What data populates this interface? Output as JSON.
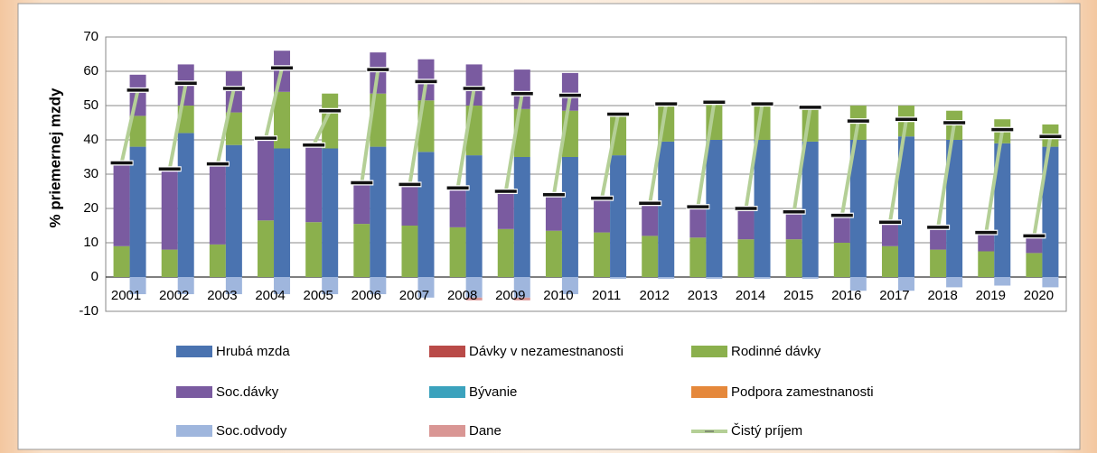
{
  "chart_data": {
    "type": "bar",
    "stacked": true,
    "legend": "bottom",
    "grid": true,
    "ylabel": "% priemernej mzdy",
    "categories": [
      "2001",
      null,
      "2002",
      null,
      "2003",
      null,
      "2004",
      null,
      "2005",
      null,
      "2006",
      null,
      "2007",
      null,
      "2008",
      null,
      "2009",
      null,
      "2010",
      null,
      "2011",
      null,
      "2012",
      null,
      "2013",
      null,
      "2014",
      null,
      "2015",
      null,
      "2016",
      null,
      "2017",
      null,
      "2018",
      null,
      "2019",
      null,
      "2020",
      null
    ],
    "ylim": [
      -10,
      70
    ],
    "yticks": [
      -10,
      0,
      10,
      20,
      30,
      40,
      50,
      60,
      70
    ],
    "series": [
      {
        "name": "Hrubá mzda",
        "color": "#4a73b0",
        "values": [
          0,
          38,
          0,
          42,
          0,
          38.5,
          0,
          37.5,
          0,
          37.5,
          0,
          38,
          0,
          36.5,
          0,
          35.5,
          0,
          35,
          0,
          35,
          0,
          35.5,
          0,
          39.5,
          0,
          40,
          0,
          40,
          0,
          39.5,
          0,
          40,
          0,
          41,
          0,
          40,
          0,
          39,
          0,
          38
        ]
      },
      {
        "name": "Dávky v nezamestnanosti",
        "color": "#b94a48",
        "values": [
          0,
          0,
          0,
          0,
          0,
          0,
          0,
          0,
          0,
          0,
          0,
          0,
          0,
          0,
          0,
          0,
          0,
          0,
          0,
          0,
          0,
          0,
          0,
          0,
          0,
          0,
          0,
          0,
          0,
          0,
          0,
          0,
          0,
          0,
          0,
          0,
          0,
          0,
          0,
          0
        ]
      },
      {
        "name": "Rodinné dávky",
        "color": "#8bb04d",
        "values": [
          9,
          9,
          8,
          8,
          9.5,
          9.5,
          16.5,
          16.5,
          16,
          16,
          15.5,
          15.5,
          15,
          15,
          14.5,
          14.5,
          14,
          14,
          13.5,
          13.5,
          13,
          12.5,
          12,
          11.5,
          11.5,
          11,
          11,
          10.5,
          11,
          10.5,
          10,
          10,
          9,
          9,
          8,
          8.5,
          7.5,
          7,
          7,
          6.5
        ]
      },
      {
        "name": "Soc.dávky",
        "color": "#7a5ba0",
        "values": [
          24,
          12,
          23,
          12,
          23,
          12,
          24,
          12,
          22.5,
          0,
          12,
          12,
          12,
          12,
          11.5,
          12,
          11,
          11.5,
          10.5,
          11,
          10,
          0,
          9.5,
          0,
          9,
          0,
          8.5,
          0,
          8,
          0,
          8,
          0,
          7,
          0,
          6.5,
          0,
          5,
          0,
          4.5,
          0
        ]
      },
      {
        "name": "Bývanie",
        "color": "#3ba2bd",
        "values": [
          0,
          0,
          0,
          0,
          0,
          0,
          0,
          0,
          0,
          0,
          0,
          0,
          0,
          0,
          0,
          0,
          0,
          0,
          0,
          0,
          0,
          0,
          0,
          0,
          0,
          0,
          0,
          0,
          0,
          0,
          0,
          0,
          0,
          0,
          0,
          0,
          0,
          0,
          0,
          0
        ]
      },
      {
        "name": "Podpora zamestnanosti",
        "color": "#e5883b",
        "values": [
          0,
          0,
          0,
          0,
          0,
          0,
          0,
          0,
          0,
          0,
          0,
          0,
          0,
          0,
          0,
          0,
          0,
          0,
          0,
          0,
          0,
          0,
          0,
          0,
          0,
          0,
          0,
          0,
          0,
          0,
          0,
          0,
          0,
          0,
          0,
          0,
          0,
          0,
          0,
          0
        ]
      },
      {
        "name": "Soc.odvody",
        "color": "#9fb6dd",
        "values": [
          0,
          -5,
          0,
          -5,
          0,
          -5,
          0,
          -5,
          0,
          -5,
          0,
          -5,
          0,
          -6,
          0,
          -6,
          0,
          -6,
          0,
          -5,
          0,
          -0.5,
          0,
          -0.5,
          0,
          -0.5,
          0,
          -0.5,
          0,
          -0.5,
          0,
          -4,
          0,
          -4,
          0,
          -3,
          0,
          -2.5,
          0,
          -3
        ]
      },
      {
        "name": "Dane",
        "color": "#d99694",
        "values": [
          0,
          0,
          0,
          0,
          0,
          0,
          0,
          0,
          0,
          0,
          0,
          0,
          0,
          0,
          0,
          -0.8,
          0,
          -0.8,
          0,
          0,
          0,
          0,
          0,
          0,
          0,
          0,
          0,
          0,
          0,
          0,
          0,
          0,
          0,
          0,
          0,
          0,
          0,
          0,
          0,
          0
        ]
      },
      {
        "name": "Čistý príjem",
        "color": "#b4cf96",
        "type": "line",
        "values": [
          33.3,
          54.5,
          31.5,
          56.5,
          33,
          55,
          40.5,
          61,
          38.5,
          48.5,
          27.5,
          60.5,
          27,
          57,
          26,
          55,
          25,
          53.5,
          24,
          53,
          23,
          47.5,
          21.5,
          50.5,
          20.5,
          51,
          20,
          50.5,
          19,
          49.5,
          18,
          45.5,
          16,
          46,
          14.5,
          45,
          13,
          43,
          12,
          41
        ]
      }
    ]
  }
}
